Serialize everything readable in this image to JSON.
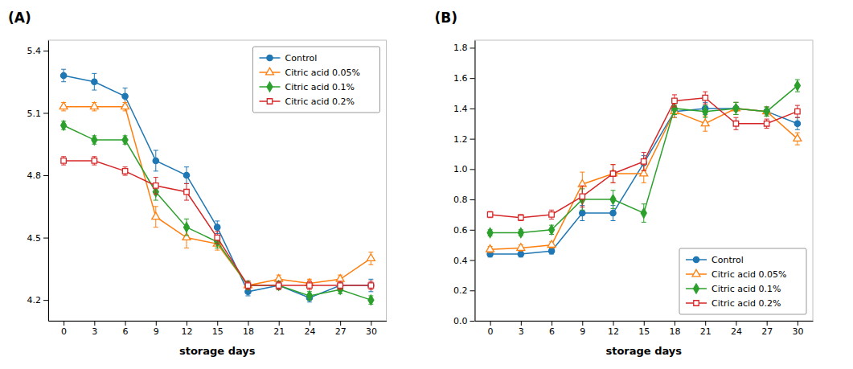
{
  "chart_data": [
    {
      "type": "line",
      "title": "(A)",
      "x_label": "storage days",
      "x": [
        0,
        3,
        6,
        9,
        12,
        15,
        18,
        21,
        24,
        27,
        30
      ],
      "series": [
        {
          "name": "Control",
          "marker": "circle",
          "values": [
            5.28,
            5.25,
            5.18,
            4.87,
            4.8,
            4.55,
            4.24,
            4.27,
            4.21,
            4.27,
            4.27
          ],
          "errors": [
            0.03,
            0.04,
            0.04,
            0.05,
            0.04,
            0.03,
            0.02,
            0.02,
            0.02,
            0.02,
            0.03
          ]
        },
        {
          "name": "Citric acid 0.05%",
          "marker": "triangle-open",
          "values": [
            5.13,
            5.13,
            5.13,
            4.6,
            4.5,
            4.47,
            4.27,
            4.3,
            4.28,
            4.3,
            4.4
          ],
          "errors": [
            0.02,
            0.02,
            0.02,
            0.05,
            0.05,
            0.03,
            0.02,
            0.02,
            0.02,
            0.02,
            0.03
          ]
        },
        {
          "name": "Citric acid 0.1%",
          "marker": "diamond",
          "values": [
            5.04,
            4.97,
            4.97,
            4.72,
            4.55,
            4.48,
            4.27,
            4.27,
            4.22,
            4.25,
            4.2
          ],
          "errors": [
            0.02,
            0.02,
            0.02,
            0.04,
            0.04,
            0.03,
            0.02,
            0.02,
            0.02,
            0.02,
            0.02
          ]
        },
        {
          "name": "Citric acid 0.2%",
          "marker": "square-open",
          "values": [
            4.87,
            4.87,
            4.82,
            4.75,
            4.72,
            4.5,
            4.27,
            4.27,
            4.27,
            4.27,
            4.27
          ],
          "errors": [
            0.02,
            0.02,
            0.02,
            0.04,
            0.04,
            0.03,
            0.02,
            0.02,
            0.02,
            0.02,
            0.02
          ]
        }
      ],
      "xlim": [
        -1.5,
        31.5
      ],
      "xticks": [
        0,
        3,
        6,
        9,
        12,
        15,
        18,
        21,
        24,
        27,
        30
      ],
      "ylim": [
        4.1,
        5.45
      ],
      "yticks": [
        4.2,
        4.5,
        4.8,
        5.1,
        5.4
      ],
      "grid": false,
      "legend": "upper right"
    },
    {
      "type": "line",
      "title": "(B)",
      "x_label": "storage days",
      "x": [
        0,
        3,
        6,
        9,
        12,
        15,
        18,
        21,
        24,
        27,
        30
      ],
      "series": [
        {
          "name": "Control",
          "marker": "circle",
          "values": [
            0.44,
            0.44,
            0.46,
            0.71,
            0.71,
            1.04,
            1.38,
            1.4,
            1.4,
            1.38,
            1.3
          ],
          "errors": [
            0.02,
            0.02,
            0.02,
            0.05,
            0.05,
            0.05,
            0.04,
            0.04,
            0.04,
            0.03,
            0.04
          ]
        },
        {
          "name": "Citric acid 0.05%",
          "marker": "triangle-open",
          "values": [
            0.47,
            0.48,
            0.5,
            0.9,
            0.97,
            0.97,
            1.38,
            1.3,
            1.4,
            1.38,
            1.2
          ],
          "errors": [
            0.02,
            0.02,
            0.02,
            0.08,
            0.06,
            0.06,
            0.04,
            0.05,
            0.04,
            0.03,
            0.04
          ]
        },
        {
          "name": "Citric acid 0.1%",
          "marker": "diamond",
          "values": [
            0.58,
            0.58,
            0.6,
            0.8,
            0.8,
            0.71,
            1.4,
            1.38,
            1.4,
            1.38,
            1.55
          ],
          "errors": [
            0.02,
            0.02,
            0.03,
            0.07,
            0.06,
            0.06,
            0.04,
            0.04,
            0.04,
            0.03,
            0.04
          ]
        },
        {
          "name": "Citric acid 0.2%",
          "marker": "square-open",
          "values": [
            0.7,
            0.68,
            0.7,
            0.82,
            0.97,
            1.05,
            1.45,
            1.47,
            1.3,
            1.3,
            1.38
          ],
          "errors": [
            0.02,
            0.02,
            0.03,
            0.07,
            0.06,
            0.06,
            0.04,
            0.04,
            0.04,
            0.03,
            0.04
          ]
        }
      ],
      "xlim": [
        -1.5,
        31.5
      ],
      "xticks": [
        0,
        3,
        6,
        9,
        12,
        15,
        18,
        21,
        24,
        27,
        30
      ],
      "ylim": [
        0.0,
        1.85
      ],
      "yticks": [
        {
          "value": 0,
          "label": "0.0"
        },
        0.2,
        0.4,
        0.6,
        0.8,
        {
          "value": 1,
          "label": "1.0"
        },
        1.2,
        1.4,
        1.6,
        1.8
      ],
      "grid": false,
      "legend": "lower right"
    }
  ]
}
